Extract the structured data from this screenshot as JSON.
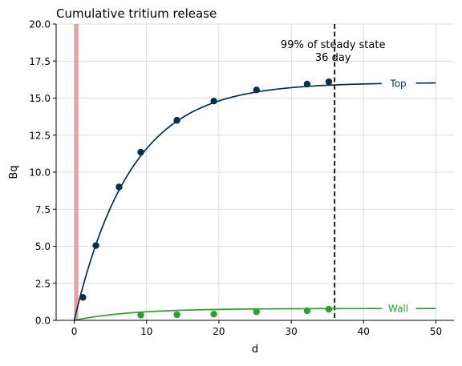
{
  "chart_data": {
    "type": "line",
    "title": "Cumulative tritium release",
    "xlabel": "d",
    "ylabel": "Bq",
    "xlim": [
      -2.5,
      52.5
    ],
    "ylim": [
      0,
      20
    ],
    "xticks": [
      0,
      10,
      20,
      30,
      40,
      50
    ],
    "yticks": [
      0.0,
      2.5,
      5.0,
      7.5,
      10.0,
      12.5,
      15.0,
      17.5,
      20.0
    ],
    "grid": true,
    "legend": "inline labels at right end of curves",
    "series": [
      {
        "name": "Top",
        "color": "#05304a",
        "model": {
          "asymptote": 16.05,
          "rate": 0.128
        },
        "points": [
          {
            "x": 1.2,
            "y": 1.55
          },
          {
            "x": 3.0,
            "y": 5.05
          },
          {
            "x": 6.2,
            "y": 9.0
          },
          {
            "x": 9.2,
            "y": 11.35
          },
          {
            "x": 14.2,
            "y": 13.5
          },
          {
            "x": 19.3,
            "y": 14.8
          },
          {
            "x": 25.2,
            "y": 15.55
          },
          {
            "x": 32.2,
            "y": 15.95
          },
          {
            "x": 35.2,
            "y": 16.1
          }
        ],
        "label_x": 46.0
      },
      {
        "name": "Wall",
        "color": "#2ca02c",
        "model": {
          "asymptote": 0.8,
          "rate": 0.128
        },
        "points": [
          {
            "x": 9.2,
            "y": 0.35
          },
          {
            "x": 14.2,
            "y": 0.38
          },
          {
            "x": 19.3,
            "y": 0.42
          },
          {
            "x": 25.2,
            "y": 0.58
          },
          {
            "x": 32.2,
            "y": 0.65
          },
          {
            "x": 35.2,
            "y": 0.75
          }
        ],
        "label_x": 46.0
      }
    ],
    "reference_lines": [
      {
        "x": 36.0,
        "style": "dashed",
        "color": "#000000",
        "annotation": [
          "99% of steady state",
          "36 day"
        ]
      },
      {
        "x": 0.3,
        "style": "band",
        "color": "#e8868a"
      }
    ]
  }
}
